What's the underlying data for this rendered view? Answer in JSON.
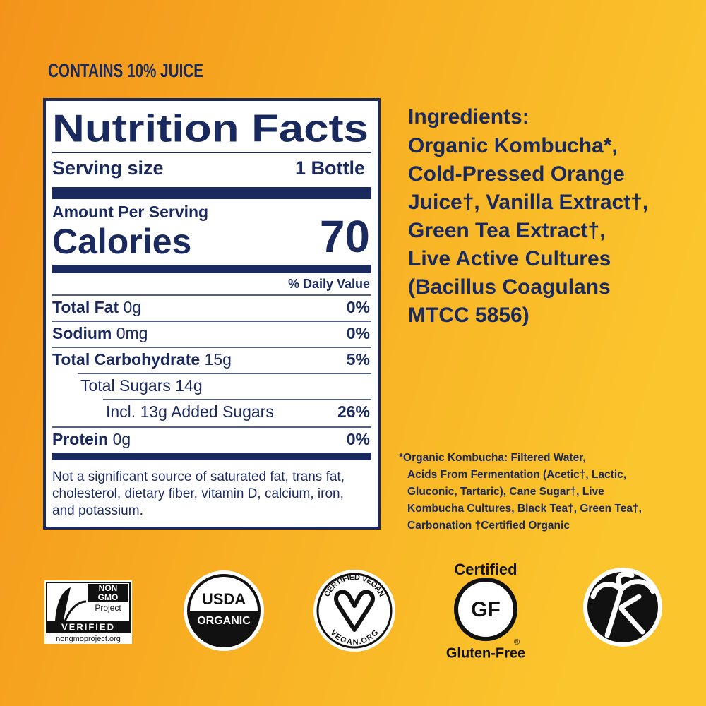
{
  "banner": "CONTAINS 10% JUICE",
  "nutrition": {
    "title": "Nutrition Facts",
    "serving_label": "Serving size",
    "serving_value": "1 Bottle",
    "amount_per_serving": "Amount Per Serving",
    "calories_label": "Calories",
    "calories_value": "70",
    "daily_value_header": "% Daily Value",
    "rows": [
      {
        "name": "Total Fat",
        "amount": "0g",
        "dv": "0%"
      },
      {
        "name": "Sodium",
        "amount": "0mg",
        "dv": "0%"
      },
      {
        "name": "Total Carbohydrate",
        "amount": "15g",
        "dv": "5%"
      },
      {
        "sub": "Total Sugars 14g"
      },
      {
        "sub": "Incl. 13g Added Sugars",
        "dv": "26%"
      },
      {
        "name": "Protein",
        "amount": "0g",
        "dv": "0%"
      }
    ],
    "footnote": [
      "Not a significant source of saturated fat, trans fat,",
      "cholesterol, dietary fiber, vitamin D, calcium, iron,",
      "and potassium."
    ]
  },
  "ingredients": {
    "heading": "Ingredients:",
    "lines": [
      "Organic Kombucha*,",
      "Cold-Pressed Orange",
      "Juice†, Vanilla Extract†,",
      "Green Tea Extract†,",
      "Live Active Cultures",
      "(Bacillus Coagulans",
      "MTCC 5856)"
    ],
    "footnote": [
      "*Organic Kombucha: Filtered Water,",
      "Acids From Fermentation (Acetic†, Lactic,",
      "Gluconic, Tartaric), Cane Sugar†, Live",
      "Kombucha Cultures, Black Tea†, Green Tea†,",
      "Carbonation  †Certified Organic"
    ]
  },
  "badges": {
    "nongmo": [
      "NON",
      "GMO",
      "Project",
      "VERIFIED",
      "nongmoproject.org"
    ],
    "usda": [
      "USDA",
      "ORGANIC"
    ],
    "vegan": [
      "CERTIFIED VEGAN",
      "VEGAN.ORG"
    ],
    "gf": [
      "Certified",
      "GF",
      "Gluten-Free",
      "®"
    ]
  }
}
